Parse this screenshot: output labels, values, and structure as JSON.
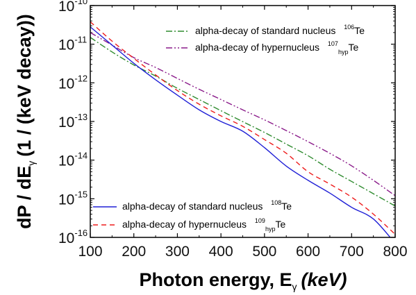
{
  "chart_data": {
    "type": "line",
    "xlabel": "Photon energy, E",
    "xlabel_subscript": "γ",
    "xlabel_unit": "(keV)",
    "ylabel": "dP / dE",
    "ylabel_subscript": "γ",
    "ylabel_unit": "(1 / (keV decay))",
    "xlim": [
      100,
      800
    ],
    "ylim": [
      1e-16,
      1e-10
    ],
    "yscale": "log",
    "xticks": [
      "100",
      "200",
      "300",
      "400",
      "500",
      "600",
      "700",
      "800"
    ],
    "yticks": [
      {
        "base": "10",
        "exp": "-16"
      },
      {
        "base": "10",
        "exp": "-15"
      },
      {
        "base": "10",
        "exp": "-14"
      },
      {
        "base": "10",
        "exp": "-13"
      },
      {
        "base": "10",
        "exp": "-12"
      },
      {
        "base": "10",
        "exp": "-11"
      },
      {
        "base": "10",
        "exp": "-10"
      }
    ],
    "series": [
      {
        "name": "alpha-decay of standard nucleus 106Te",
        "label_text": "alpha-decay of standard nucleus",
        "label_sup": "106",
        "label_sub": "",
        "label_elem": "Te",
        "color": "#2e8b2e",
        "dash": "9,3,2,3",
        "legend": "top",
        "x": [
          100,
          150,
          200,
          250,
          300,
          350,
          400,
          450,
          500,
          550,
          600,
          650,
          700,
          750,
          800
        ],
        "y": [
          1.5e-11,
          6.3e-12,
          2.9e-12,
          1.5e-12,
          7.2e-13,
          3.7e-13,
          1.9e-13,
          9.9e-14,
          5.2e-14,
          2.6e-14,
          1.3e-14,
          5.8e-15,
          2.8e-15,
          1.35e-15,
          6.5e-16
        ]
      },
      {
        "name": "alpha-decay of hypernucleus 107hypTe",
        "label_text": "alpha-decay of hypernucleus",
        "label_sup": "107",
        "label_sub": "hyp",
        "label_elem": "Te",
        "color": "#8a1a8a",
        "dash": "9,3,2,3,2,3",
        "legend": "top",
        "x": [
          100,
          150,
          200,
          250,
          300,
          350,
          400,
          450,
          500,
          550,
          600,
          650,
          700,
          750,
          800
        ],
        "y": [
          2e-11,
          9.5e-12,
          4.5e-12,
          2.5e-12,
          1.3e-12,
          6.8e-13,
          3.7e-13,
          2e-13,
          1.1e-13,
          5.8e-14,
          3e-14,
          1.5e-14,
          7.1e-15,
          3e-15,
          1.2e-15
        ]
      },
      {
        "name": "alpha-decay of standard nucleus 108Te",
        "label_text": "alpha-decay of standard nucleus",
        "label_sup": "108",
        "label_sub": "",
        "label_elem": "Te",
        "color": "#1f1fd6",
        "dash": "",
        "legend": "bottom",
        "x": [
          100,
          150,
          200,
          250,
          300,
          350,
          400,
          450,
          500,
          550,
          600,
          650,
          700,
          750,
          800
        ],
        "y": [
          2.8e-11,
          9.5e-12,
          3.2e-12,
          1.2e-12,
          4.8e-13,
          2e-13,
          1e-13,
          5.6e-14,
          2.1e-14,
          7e-15,
          3e-15,
          1.4e-15,
          6e-16,
          3e-16,
          7e-17
        ]
      },
      {
        "name": "alpha-decay of hypernucleus 109hypTe",
        "label_text": "alpha-decay of hypernucleus",
        "label_sup": "109",
        "label_sub": "hyp",
        "label_elem": "Te",
        "color": "#ee1c1c",
        "dash": "7,5",
        "legend": "bottom",
        "x": [
          100,
          150,
          200,
          250,
          300,
          350,
          400,
          450,
          500,
          550,
          600,
          650,
          700,
          750,
          800
        ],
        "y": [
          3.8e-11,
          1.2e-11,
          4.3e-12,
          1.6e-12,
          6.3e-13,
          2.8e-13,
          1.4e-13,
          7.5e-14,
          3.4e-14,
          1.5e-14,
          5e-15,
          2.4e-15,
          1.1e-15,
          4e-16,
          1.2e-16
        ]
      }
    ]
  }
}
